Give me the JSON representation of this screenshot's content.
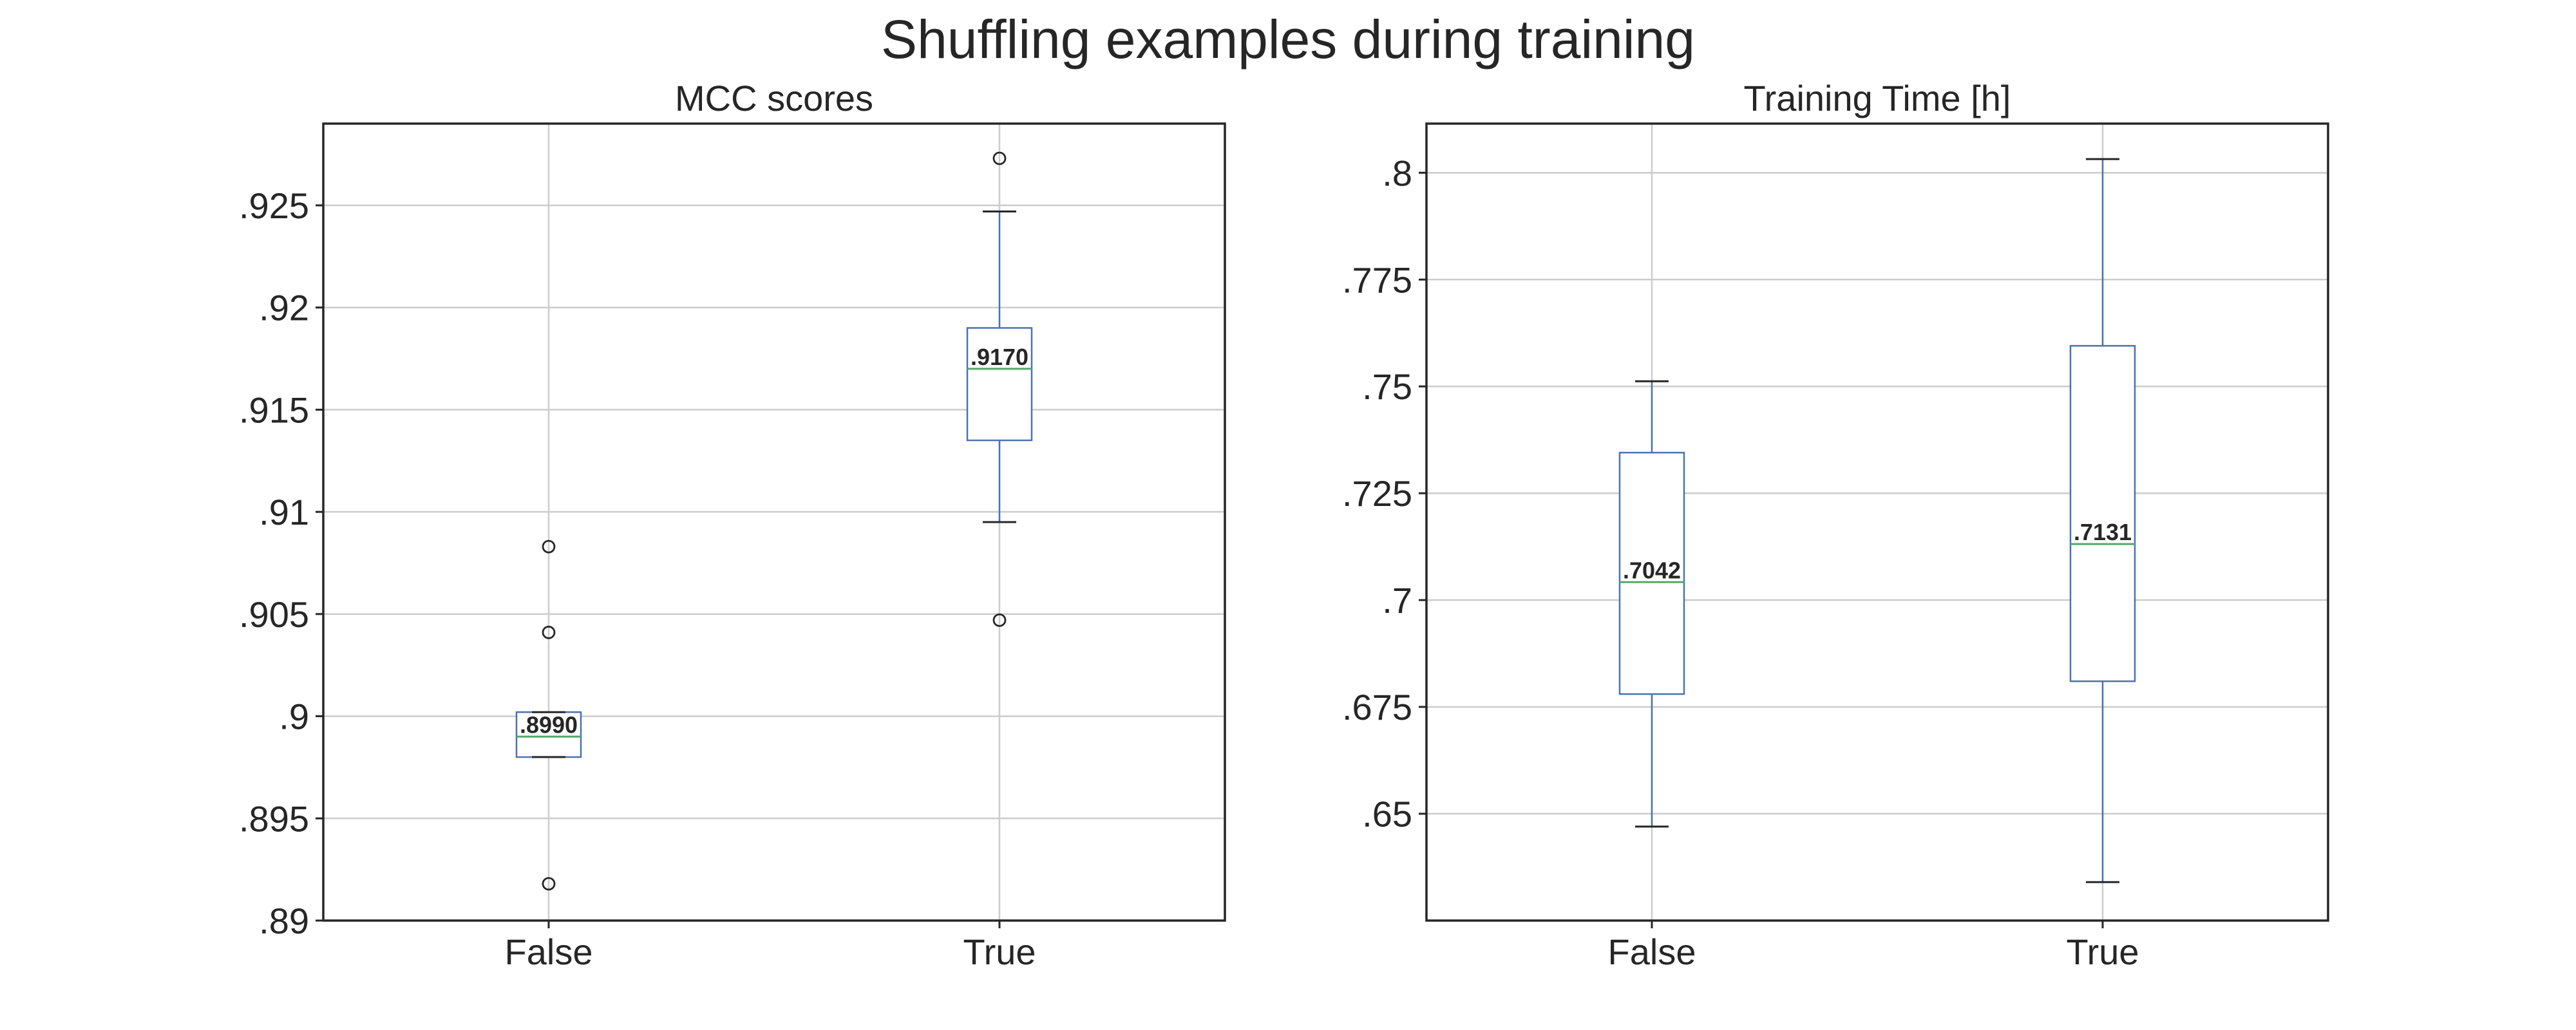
{
  "figure": {
    "suptitle": "Shuffling examples during training"
  },
  "colors": {
    "box": "#4c72b0",
    "median": "#55a868",
    "cap_and_flier": "#262626",
    "grid": "#cccccc"
  },
  "chart_data": [
    {
      "type": "box",
      "title": "MCC scores",
      "xlabel": "",
      "ylabel": "",
      "categories": [
        "False",
        "True"
      ],
      "ylim": [
        0.89,
        0.929
      ],
      "yticks": [
        {
          "value": 0.89,
          "label": ".89"
        },
        {
          "value": 0.895,
          "label": ".895"
        },
        {
          "value": 0.9,
          "label": ".9"
        },
        {
          "value": 0.905,
          "label": ".905"
        },
        {
          "value": 0.91,
          "label": ".91"
        },
        {
          "value": 0.915,
          "label": ".915"
        },
        {
          "value": 0.92,
          "label": ".92"
        },
        {
          "value": 0.925,
          "label": ".925"
        }
      ],
      "grid": true,
      "boxes": [
        {
          "category": "False",
          "whisker_low": 0.898,
          "q1": 0.898,
          "median": 0.899,
          "q3": 0.9002,
          "whisker_high": 0.9002,
          "fliers": [
            0.9083,
            0.9041,
            0.8918
          ],
          "median_label": ".8990"
        },
        {
          "category": "True",
          "whisker_low": 0.9095,
          "q1": 0.9135,
          "median": 0.917,
          "q3": 0.919,
          "whisker_high": 0.9247,
          "fliers": [
            0.9273,
            0.9047
          ],
          "median_label": ".9170"
        }
      ]
    },
    {
      "type": "box",
      "title": "Training Time [h]",
      "xlabel": "",
      "ylabel": "",
      "categories": [
        "False",
        "True"
      ],
      "ylim": [
        0.625,
        0.8115
      ],
      "yticks": [
        {
          "value": 0.65,
          "label": ".65"
        },
        {
          "value": 0.675,
          "label": ".675"
        },
        {
          "value": 0.7,
          "label": ".7"
        },
        {
          "value": 0.725,
          "label": ".725"
        },
        {
          "value": 0.75,
          "label": ".75"
        },
        {
          "value": 0.775,
          "label": ".775"
        },
        {
          "value": 0.8,
          "label": ".8"
        }
      ],
      "grid": true,
      "boxes": [
        {
          "category": "False",
          "whisker_low": 0.647,
          "q1": 0.678,
          "median": 0.7042,
          "q3": 0.7345,
          "whisker_high": 0.7512,
          "fliers": [],
          "median_label": ".7042"
        },
        {
          "category": "True",
          "whisker_low": 0.634,
          "q1": 0.681,
          "median": 0.7131,
          "q3": 0.7595,
          "whisker_high": 0.8032,
          "fliers": [],
          "median_label": ".7131"
        }
      ]
    }
  ]
}
